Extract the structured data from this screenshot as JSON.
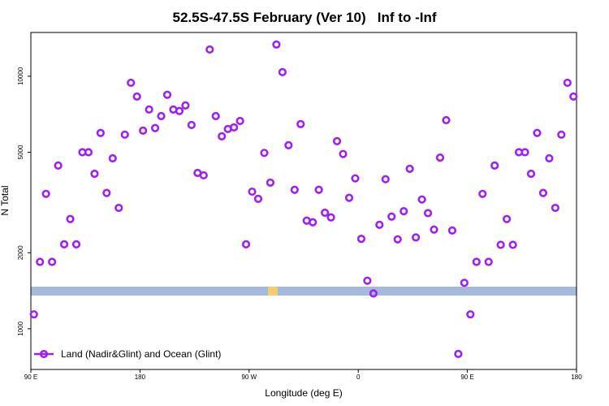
{
  "chart_data": {
    "type": "scatter",
    "title": "52.5S-47.5S February (Ver 10)   Inf to -Inf",
    "x_label": "Longitude (deg E)",
    "y_label": "N Total",
    "log_y": true,
    "color": "#a020f0",
    "legend_position": "lower left",
    "series": [
      {
        "name": "Land (Nadir&Glint) and Ocean (Glint)",
        "color": "#a020f0",
        "x": [
          92.5,
          97.5,
          102.5,
          107.5,
          112.5,
          117.5,
          122.5,
          127.5,
          132.5,
          137.5,
          142.5,
          147.5,
          152.5,
          157.5,
          162.5,
          167.5,
          172.5,
          177.5,
          182.5,
          187.5,
          192.5,
          197.5,
          202.5,
          207.5,
          212.5,
          217.5,
          222.5,
          227.5,
          232.5,
          237.5,
          242.5,
          247.5,
          252.5,
          257.5,
          262.5,
          267.5,
          272.5,
          277.5,
          282.5,
          287.5,
          292.5,
          297.5,
          302.5,
          307.5,
          312.5,
          317.5,
          322.5,
          327.5,
          332.5,
          337.5,
          342.5,
          347.5,
          352.5,
          357.5,
          362.5,
          367.5,
          372.5,
          377.5,
          382.5,
          387.5,
          392.5,
          397.5,
          402.5,
          407.5,
          412.5,
          417.5,
          422.5,
          427.5,
          432.5,
          437.5,
          442.5,
          447.5,
          452.5,
          457.5,
          462.5,
          467.5,
          472.5,
          477.5,
          482.5,
          487.5,
          492.5,
          497.5,
          502.5,
          507.5,
          512.5,
          517.5,
          522.5,
          527.5,
          532.5,
          537.5
        ],
        "values": [
          1140,
          1840,
          3420,
          1840,
          4430,
          2160,
          2720,
          2160,
          5000,
          5000,
          4110,
          5960,
          3450,
          4730,
          3010,
          5870,
          9420,
          8310,
          6090,
          7380,
          6230,
          6950,
          8440,
          7380,
          7280,
          7660,
          6410,
          4140,
          4050,
          12760,
          6950,
          5780,
          6180,
          6270,
          6650,
          2160,
          3490,
          3270,
          4970,
          3790,
          13350,
          10380,
          5330,
          3550,
          6460,
          2680,
          2640,
          3550,
          2880,
          2760,
          5530,
          4920,
          3300,
          3940,
          2270,
          1550,
          1380,
          2580,
          3910,
          2780,
          2260,
          2920,
          4300,
          2300,
          3250,
          2870,
          2470,
          4760,
          6700,
          2450,
          795,
          1520,
          1140,
          1840,
          3420,
          1840,
          4430,
          2150,
          2720,
          2150,
          5000,
          5000,
          4110,
          5960,
          3450,
          4730,
          3010,
          5870,
          9420,
          8310
        ]
      }
    ],
    "xlim": [
      90,
      540
    ],
    "xticks": [
      {
        "value": 90,
        "label": "90 E"
      },
      180,
      {
        "value": 270,
        "label": "90 W"
      },
      {
        "value": 360,
        "label": "0"
      },
      {
        "value": 450,
        "label": "90 E"
      },
      {
        "value": 540,
        "label": "180"
      }
    ],
    "ylim": [
      690,
      14900
    ],
    "yticks": [
      1000,
      2000,
      5000,
      10000
    ]
  }
}
